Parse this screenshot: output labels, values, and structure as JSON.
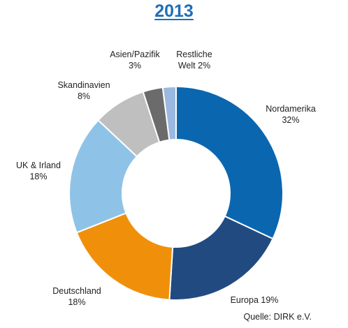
{
  "chart_data": {
    "type": "pie",
    "title": "2013",
    "source": "Quelle: DIRK e.V.",
    "slices": [
      {
        "label_lines": [
          "Nordamerika",
          "32%"
        ],
        "value": 32,
        "color": "#0b66b0"
      },
      {
        "label_lines": [
          "Europa 19%"
        ],
        "value": 19,
        "color": "#214a80"
      },
      {
        "label_lines": [
          "Deutschland",
          "18%"
        ],
        "value": 18,
        "color": "#f0900a"
      },
      {
        "label_lines": [
          "UK & Irland",
          "18%"
        ],
        "value": 18,
        "color": "#8ec3e7"
      },
      {
        "label_lines": [
          "Skandinavien",
          "8%"
        ],
        "value": 8,
        "color": "#bfbfbf"
      },
      {
        "label_lines": [
          "Asien/Pazifik",
          "3%"
        ],
        "value": 3,
        "color": "#6b6b6b"
      },
      {
        "label_lines": [
          "Restliche",
          "Welt 2%"
        ],
        "value": 2,
        "color": "#9bb9e0"
      }
    ]
  }
}
